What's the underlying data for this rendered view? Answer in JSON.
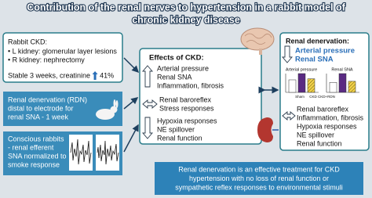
{
  "title": [
    "Contribution of the renal nerves to hypertension in a rabbit model of",
    "chronic kidney disease"
  ],
  "ckd_box": {
    "heading": "Rabbit CKD:",
    "items": [
      "• L kidney: glomerular layer lesions",
      "• R kidney: nephrectomy"
    ],
    "note": "Stable 3 weeks, creatinine",
    "change": "41%"
  },
  "rdn_box": [
    "Renal denervation (RDN)",
    "distal to electrode for",
    "renal SNA - 1 week"
  ],
  "sna_box": [
    "Conscious rabbits",
    "- renal efferent",
    "SNA normalized to",
    "smoke response"
  ],
  "effects": {
    "heading": "Effects of CKD:",
    "increased": [
      "Arterial pressure",
      "Renal SNA",
      "Inflammation, fibrosis"
    ],
    "unchanged": [
      "Renal baroreflex",
      "Stress responses"
    ],
    "decreased": [
      "Hypoxia responses",
      "NE spillover",
      "Renal function"
    ]
  },
  "denervation": {
    "heading": "Renal denervation:",
    "decreased": [
      "Arterial pressure",
      "Renal SNA"
    ],
    "charts": [
      {
        "title": "Arterial pressure",
        "values": [
          60,
          90,
          65
        ]
      },
      {
        "title": "Renal SNA",
        "values": [
          45,
          85,
          50
        ]
      }
    ],
    "legend": [
      "Sham",
      "CKD",
      "CKD+RDN"
    ],
    "unchanged": [
      "Renal baroreflex",
      "Inflammation, fibrosis",
      "Hypoxia responses",
      "NE spillover",
      "Renal function"
    ]
  },
  "conclusion": [
    "Renal denervation is an effective treatment for CKD",
    "hypertension with no loss of renal function or",
    "sympathetic reflex responses to environmental stimuli"
  ]
}
